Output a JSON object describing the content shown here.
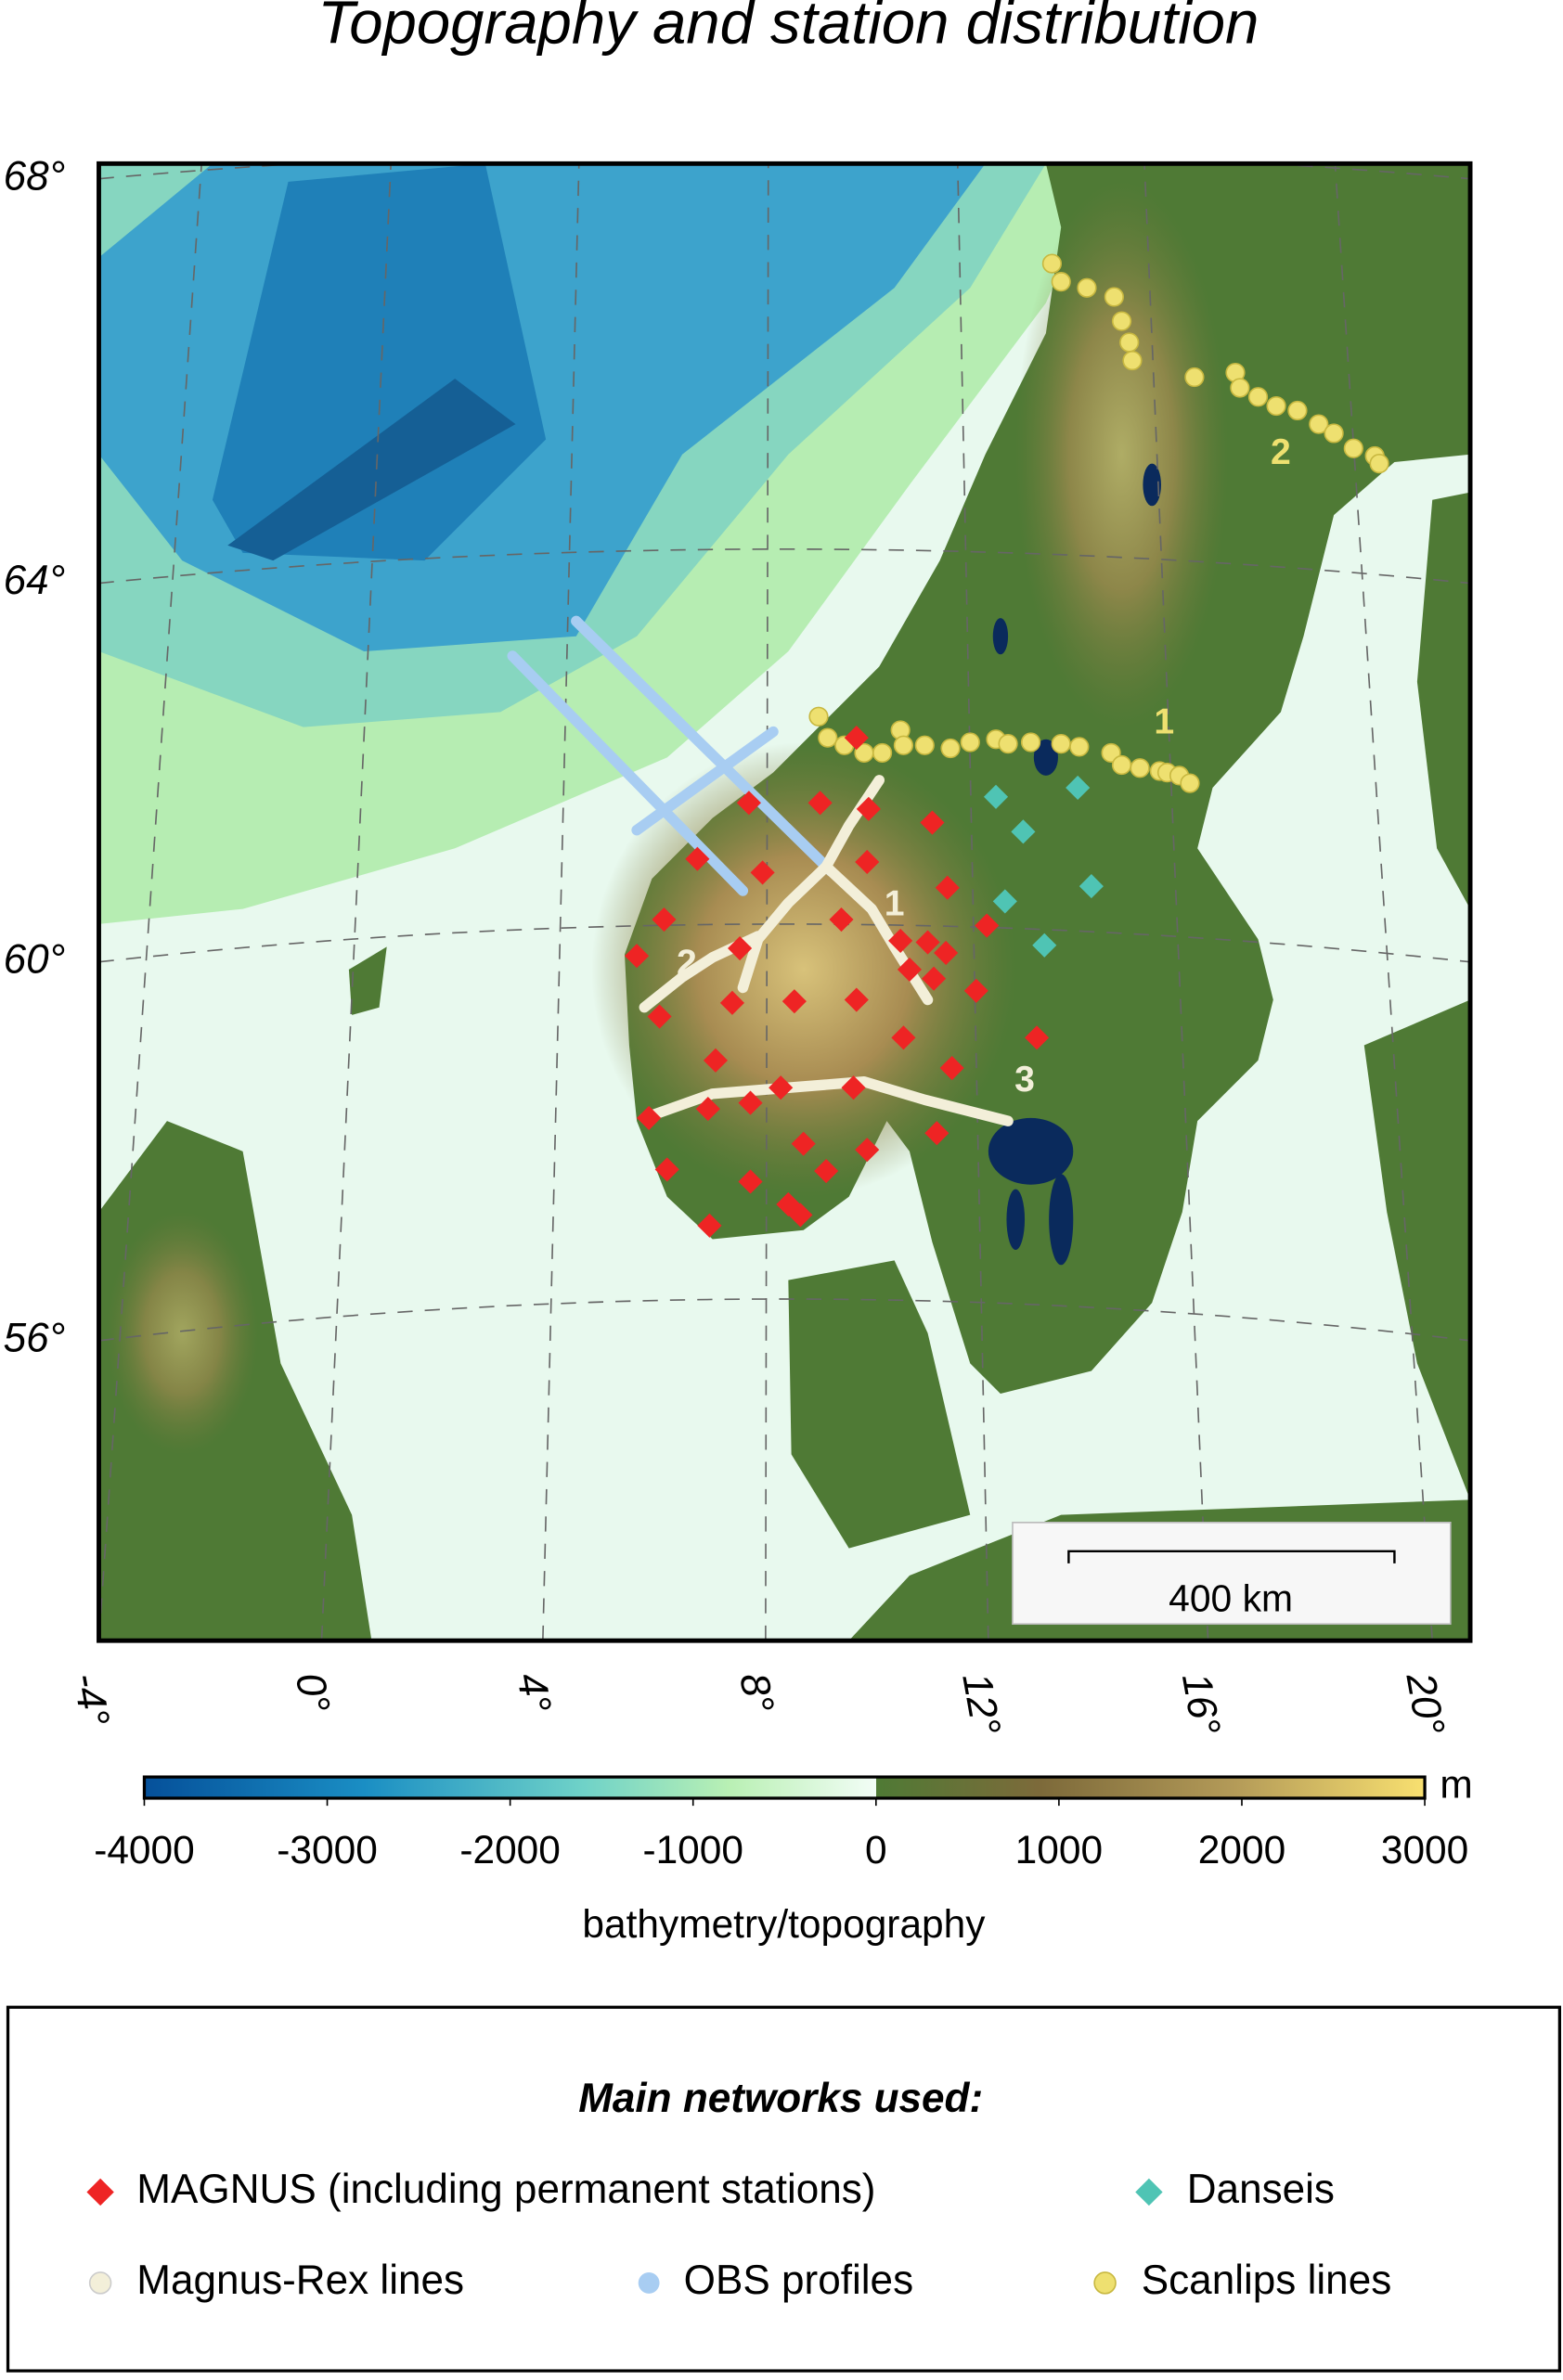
{
  "title": "Topography and station distribution",
  "map": {
    "lat_labels": [
      "68°",
      "64°",
      "60°",
      "56°"
    ],
    "lon_labels": [
      "-4°",
      "0°",
      "4°",
      "8°",
      "12°",
      "16°",
      "20°"
    ],
    "scale_bar": "400 km",
    "profile_labels": {
      "scanlips": [
        "1",
        "2"
      ],
      "magnus_rex": [
        "1",
        "2",
        "3"
      ]
    }
  },
  "colorbar": {
    "range": [
      -4000,
      3000
    ],
    "ticks": [
      -4000,
      -3000,
      -2000,
      -1000,
      0,
      1000,
      2000,
      3000
    ],
    "unit": "m",
    "label": "bathymetry/topography"
  },
  "legend": {
    "title": "Main networks used:",
    "items": [
      "MAGNUS (including permanent stations)",
      "Danseis",
      "Magnus-Rex lines",
      "OBS profiles",
      "Scanlips lines"
    ]
  }
}
